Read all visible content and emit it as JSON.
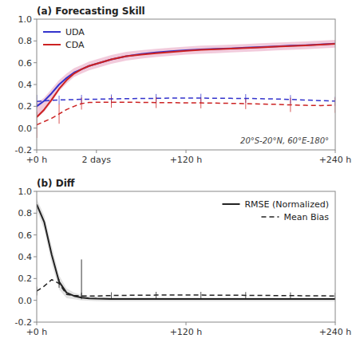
{
  "chart_data": [
    {
      "type": "line",
      "title": "(a) Forecasting Skill",
      "annotation": "20°S-20°N, 60°E-180°",
      "x": [
        0,
        6,
        12,
        18,
        24,
        30,
        36,
        42,
        48,
        60,
        72,
        84,
        96,
        108,
        120,
        132,
        144,
        156,
        168,
        180,
        192,
        204,
        216,
        228,
        240
      ],
      "series": [
        {
          "type": "band",
          "color": "#e8a0c0",
          "lower": [
            0.09,
            0.15,
            0.24,
            0.34,
            0.41,
            0.47,
            0.5,
            0.53,
            0.55,
            0.59,
            0.62,
            0.638,
            0.652,
            0.663,
            0.674,
            0.682,
            0.688,
            0.694,
            0.7,
            0.706,
            0.713,
            0.718,
            0.724,
            0.731,
            0.738
          ],
          "upper": [
            0.23,
            0.28,
            0.36,
            0.44,
            0.5,
            0.55,
            0.58,
            0.61,
            0.63,
            0.67,
            0.7,
            0.715,
            0.728,
            0.738,
            0.748,
            0.756,
            0.761,
            0.766,
            0.772,
            0.778,
            0.784,
            0.79,
            0.796,
            0.803,
            0.81
          ]
        },
        {
          "name": "UDA",
          "type": "line",
          "line_style": "solid",
          "color": "#3333cc",
          "values": [
            0.2,
            0.25,
            0.32,
            0.4,
            0.46,
            0.51,
            0.54,
            0.57,
            0.59,
            0.63,
            0.66,
            0.68,
            0.695,
            0.705,
            0.715,
            0.722,
            0.727,
            0.732,
            0.738,
            0.744,
            0.75,
            0.756,
            0.761,
            0.768,
            0.775
          ]
        },
        {
          "name": "CDA",
          "type": "line",
          "line_style": "solid",
          "color": "#cc2222",
          "values": [
            0.1,
            0.17,
            0.26,
            0.36,
            0.44,
            0.5,
            0.54,
            0.57,
            0.59,
            0.63,
            0.66,
            0.675,
            0.688,
            0.699,
            0.71,
            0.718,
            0.724,
            0.729,
            0.735,
            0.741,
            0.748,
            0.753,
            0.759,
            0.766,
            0.773
          ]
        },
        {
          "type": "line",
          "line_style": "dashed",
          "color": "#3333cc",
          "values": [
            0.245,
            0.25,
            0.255,
            0.258,
            0.26,
            0.262,
            0.265,
            0.265,
            0.265,
            0.268,
            0.27,
            0.272,
            0.273,
            0.275,
            0.276,
            0.275,
            0.274,
            0.273,
            0.272,
            0.27,
            0.267,
            0.263,
            0.258,
            0.252,
            0.248
          ],
          "errors": [
            0.06,
            null,
            null,
            0.04,
            null,
            null,
            0.04,
            null,
            null,
            0.04,
            null,
            null,
            0.04,
            null,
            null,
            0.04,
            null,
            null,
            0.04,
            null,
            null,
            0.04,
            null,
            null,
            0.04
          ]
        },
        {
          "type": "line",
          "line_style": "dashed",
          "color": "#cc2222",
          "values": [
            0.03,
            0.06,
            0.09,
            0.13,
            0.17,
            0.2,
            0.225,
            0.235,
            0.237,
            0.237,
            0.237,
            0.236,
            0.234,
            0.233,
            0.232,
            0.231,
            0.229,
            0.227,
            0.224,
            0.221,
            0.218,
            0.213,
            0.209,
            0.207,
            0.21
          ],
          "errors": [
            0.12,
            null,
            null,
            0.09,
            null,
            null,
            0.055,
            null,
            null,
            0.05,
            null,
            null,
            0.05,
            null,
            null,
            0.05,
            null,
            null,
            0.05,
            null,
            null,
            0.065,
            null,
            null,
            0.07
          ]
        }
      ],
      "xlim": [
        0,
        240
      ],
      "xticks": [
        {
          "value": 0,
          "label": "+0 h"
        },
        {
          "value": 48,
          "label": "2 days"
        },
        {
          "value": 120,
          "label": "+120 h"
        },
        {
          "value": 240,
          "label": "+240 h"
        }
      ],
      "ylim": [
        -0.2,
        1.0
      ],
      "yticks": [
        -0.2,
        {
          "value": 0.0,
          "label": "0.0"
        },
        0.2,
        0.4,
        0.6,
        0.8,
        {
          "value": 1.0,
          "label": "1.0"
        }
      ],
      "grid": false,
      "legend": "upper left"
    },
    {
      "type": "line",
      "title": "(b) Diff",
      "x": [
        0,
        6,
        12,
        18,
        24,
        30,
        36,
        42,
        48,
        60,
        72,
        84,
        96,
        108,
        120,
        132,
        144,
        156,
        168,
        180,
        192,
        204,
        216,
        228,
        240
      ],
      "series": [
        {
          "type": "band",
          "color": "#cccccc",
          "lower": [
            0.83,
            0.65,
            0.34,
            0.1,
            0.02,
            0.01,
            0.0,
            -0.005,
            -0.008,
            -0.01,
            -0.01,
            -0.01,
            -0.01,
            -0.01,
            -0.01,
            -0.01,
            -0.01,
            -0.01,
            -0.01,
            -0.01,
            -0.01,
            -0.01,
            -0.01,
            -0.01,
            -0.01
          ],
          "upper": [
            0.93,
            0.78,
            0.5,
            0.23,
            0.11,
            0.07,
            0.05,
            0.04,
            0.035,
            0.03,
            0.028,
            0.027,
            0.026,
            0.025,
            0.025,
            0.025,
            0.025,
            0.025,
            0.025,
            0.025,
            0.025,
            0.025,
            0.025,
            0.025,
            0.025
          ]
        },
        {
          "name": "RMSE (Normalized)",
          "type": "line",
          "line_style": "solid",
          "color": "#222222",
          "values": [
            0.88,
            0.72,
            0.42,
            0.17,
            0.07,
            0.04,
            0.025,
            0.018,
            0.015,
            0.013,
            0.012,
            0.012,
            0.012,
            0.012,
            0.012,
            0.012,
            0.012,
            0.012,
            0.012,
            0.012,
            0.012,
            0.012,
            0.012,
            0.012,
            0.012
          ],
          "errors_upper": [
            null,
            null,
            null,
            null,
            null,
            null,
            0.35,
            null,
            null,
            null,
            null,
            null,
            null,
            null,
            null,
            null,
            null,
            null,
            null,
            null,
            null,
            null,
            null,
            null,
            null
          ]
        },
        {
          "name": "Mean Bias",
          "type": "line",
          "line_style": "dashed",
          "color": "#222222",
          "values": [
            0.085,
            0.13,
            0.19,
            0.155,
            0.055,
            0.045,
            0.04,
            0.04,
            0.04,
            0.044,
            0.046,
            0.047,
            0.048,
            0.048,
            0.049,
            0.048,
            0.047,
            0.047,
            0.046,
            0.045,
            0.044,
            0.043,
            0.042,
            0.041,
            0.04
          ],
          "errors": [
            0.04,
            null,
            null,
            0.04,
            null,
            null,
            0.03,
            null,
            null,
            0.03,
            null,
            null,
            0.03,
            null,
            null,
            0.03,
            null,
            null,
            0.03,
            null,
            null,
            0.03,
            null,
            null,
            0.03
          ]
        }
      ],
      "xlim": [
        0,
        240
      ],
      "xticks": [
        {
          "value": 0,
          "label": "+0 h"
        },
        {
          "value": 120,
          "label": "+120 h"
        },
        {
          "value": 240,
          "label": "+240 h"
        }
      ],
      "ylim": [
        -0.2,
        1.0
      ],
      "yticks": [
        -0.2,
        {
          "value": 0.0,
          "label": "0.0"
        },
        0.2,
        0.4,
        0.6,
        0.8,
        {
          "value": 1.0,
          "label": "1.0"
        }
      ],
      "grid": false,
      "legend": "upper right"
    }
  ]
}
